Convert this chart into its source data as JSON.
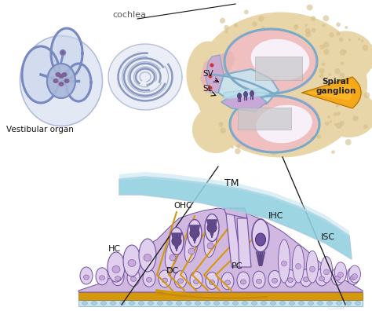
{
  "bg_color": "#ffffff",
  "labels": {
    "cochlea": "cochlea",
    "vestibular": "Vestibular organ",
    "SV": "SV",
    "SL": "SL",
    "spiral_ganglion": "Spiral\nganglion",
    "TM": "TM",
    "HC": "HC",
    "OHC": "OHC",
    "IHC": "IHC",
    "DC": "DC",
    "PC": "PC",
    "ISC": "ISC"
  },
  "colors": {
    "bone": "#e8d5a8",
    "bone_spots": "#d4bc88",
    "scala_pink": "#f0c0c0",
    "scala_pink2": "#e8b8b8",
    "blue_mem": "#7aaac8",
    "blue_light": "#a8cce0",
    "blue_pale": "#c8e4f0",
    "ganglion_orange": "#f5a818",
    "ganglion_bright": "#ffc030",
    "cell_lavender": "#c8a8d8",
    "cell_purple": "#7050a0",
    "cell_dark": "#5030808",
    "hair_purple": "#604888",
    "hair_dark": "#483070",
    "nerve_gold": "#d4980a",
    "nerve_gold2": "#c88808",
    "tectorial_blue": "#90d0e0",
    "tectorial_pale": "#b8e0ec",
    "tissue_lavender": "#d0b8e0",
    "tissue_pale": "#e0d0ee",
    "support_lavender": "#c8b0d8",
    "vest_blue": "#7888c0",
    "vest_light": "#a8b8d8",
    "vest_pale": "#c8d4ea",
    "vest_purple": "#806098",
    "snail_blue": "#8898c0",
    "snail_pale": "#c0cce0",
    "snail_inner": "#d8dff0",
    "gray_box": "#c8c8cc",
    "black": "#111111",
    "red_dot": "#cc3333"
  }
}
